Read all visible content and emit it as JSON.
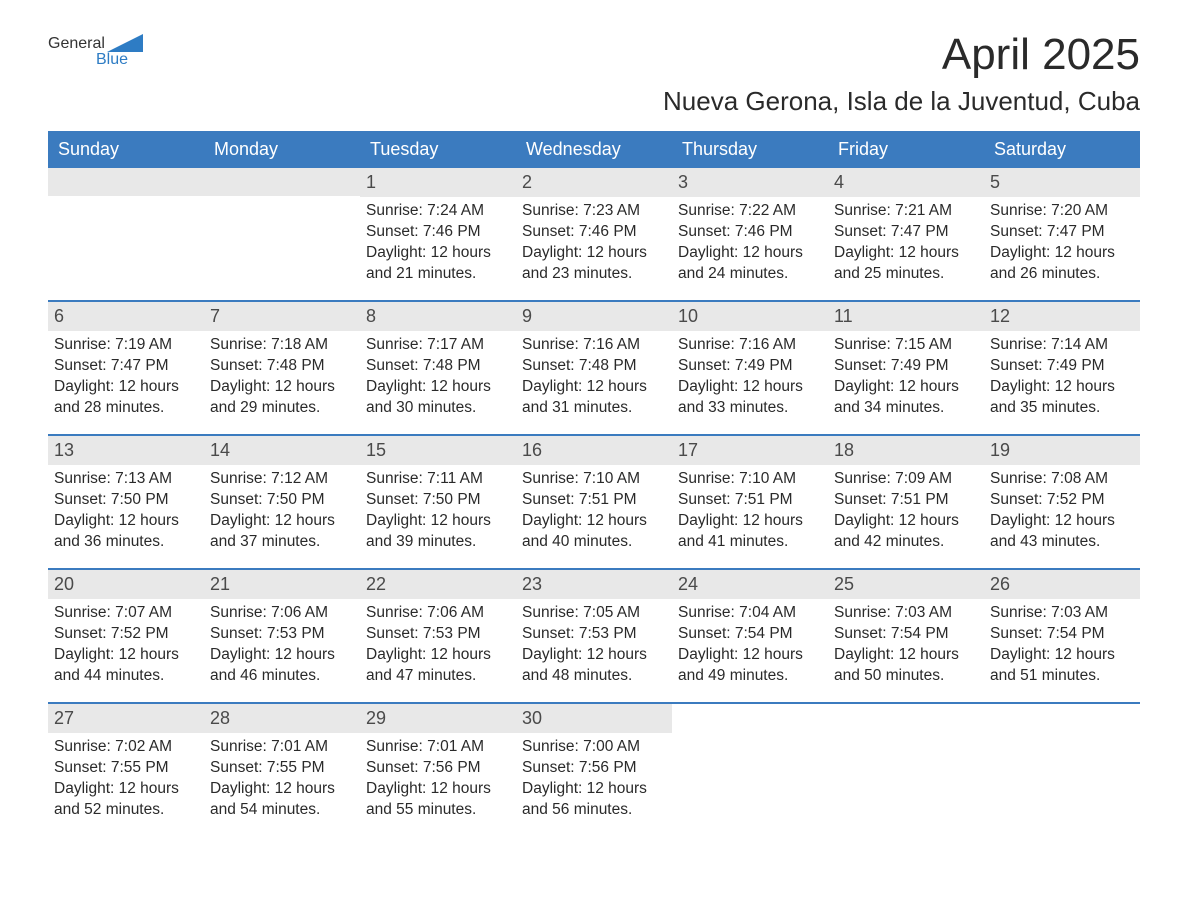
{
  "brand": {
    "word1": "General",
    "word2": "Blue",
    "text_color": "#333333",
    "accent_color": "#2e7cc4"
  },
  "title": "April 2025",
  "location": "Nueva Gerona, Isla de la Juventud, Cuba",
  "colors": {
    "header_bg": "#3b7bbf",
    "header_text": "#ffffff",
    "daynum_bg": "#e8e8e8",
    "daynum_text": "#4a4a4a",
    "body_text": "#2a2a2a",
    "row_divider": "#3b7bbf",
    "page_bg": "#ffffff"
  },
  "day_labels": [
    "Sunday",
    "Monday",
    "Tuesday",
    "Wednesday",
    "Thursday",
    "Friday",
    "Saturday"
  ],
  "weeks": [
    [
      {
        "day": "",
        "lines": []
      },
      {
        "day": "",
        "lines": []
      },
      {
        "day": "1",
        "lines": [
          "Sunrise: 7:24 AM",
          "Sunset: 7:46 PM",
          "Daylight: 12 hours",
          "and 21 minutes."
        ]
      },
      {
        "day": "2",
        "lines": [
          "Sunrise: 7:23 AM",
          "Sunset: 7:46 PM",
          "Daylight: 12 hours",
          "and 23 minutes."
        ]
      },
      {
        "day": "3",
        "lines": [
          "Sunrise: 7:22 AM",
          "Sunset: 7:46 PM",
          "Daylight: 12 hours",
          "and 24 minutes."
        ]
      },
      {
        "day": "4",
        "lines": [
          "Sunrise: 7:21 AM",
          "Sunset: 7:47 PM",
          "Daylight: 12 hours",
          "and 25 minutes."
        ]
      },
      {
        "day": "5",
        "lines": [
          "Sunrise: 7:20 AM",
          "Sunset: 7:47 PM",
          "Daylight: 12 hours",
          "and 26 minutes."
        ]
      }
    ],
    [
      {
        "day": "6",
        "lines": [
          "Sunrise: 7:19 AM",
          "Sunset: 7:47 PM",
          "Daylight: 12 hours",
          "and 28 minutes."
        ]
      },
      {
        "day": "7",
        "lines": [
          "Sunrise: 7:18 AM",
          "Sunset: 7:48 PM",
          "Daylight: 12 hours",
          "and 29 minutes."
        ]
      },
      {
        "day": "8",
        "lines": [
          "Sunrise: 7:17 AM",
          "Sunset: 7:48 PM",
          "Daylight: 12 hours",
          "and 30 minutes."
        ]
      },
      {
        "day": "9",
        "lines": [
          "Sunrise: 7:16 AM",
          "Sunset: 7:48 PM",
          "Daylight: 12 hours",
          "and 31 minutes."
        ]
      },
      {
        "day": "10",
        "lines": [
          "Sunrise: 7:16 AM",
          "Sunset: 7:49 PM",
          "Daylight: 12 hours",
          "and 33 minutes."
        ]
      },
      {
        "day": "11",
        "lines": [
          "Sunrise: 7:15 AM",
          "Sunset: 7:49 PM",
          "Daylight: 12 hours",
          "and 34 minutes."
        ]
      },
      {
        "day": "12",
        "lines": [
          "Sunrise: 7:14 AM",
          "Sunset: 7:49 PM",
          "Daylight: 12 hours",
          "and 35 minutes."
        ]
      }
    ],
    [
      {
        "day": "13",
        "lines": [
          "Sunrise: 7:13 AM",
          "Sunset: 7:50 PM",
          "Daylight: 12 hours",
          "and 36 minutes."
        ]
      },
      {
        "day": "14",
        "lines": [
          "Sunrise: 7:12 AM",
          "Sunset: 7:50 PM",
          "Daylight: 12 hours",
          "and 37 minutes."
        ]
      },
      {
        "day": "15",
        "lines": [
          "Sunrise: 7:11 AM",
          "Sunset: 7:50 PM",
          "Daylight: 12 hours",
          "and 39 minutes."
        ]
      },
      {
        "day": "16",
        "lines": [
          "Sunrise: 7:10 AM",
          "Sunset: 7:51 PM",
          "Daylight: 12 hours",
          "and 40 minutes."
        ]
      },
      {
        "day": "17",
        "lines": [
          "Sunrise: 7:10 AM",
          "Sunset: 7:51 PM",
          "Daylight: 12 hours",
          "and 41 minutes."
        ]
      },
      {
        "day": "18",
        "lines": [
          "Sunrise: 7:09 AM",
          "Sunset: 7:51 PM",
          "Daylight: 12 hours",
          "and 42 minutes."
        ]
      },
      {
        "day": "19",
        "lines": [
          "Sunrise: 7:08 AM",
          "Sunset: 7:52 PM",
          "Daylight: 12 hours",
          "and 43 minutes."
        ]
      }
    ],
    [
      {
        "day": "20",
        "lines": [
          "Sunrise: 7:07 AM",
          "Sunset: 7:52 PM",
          "Daylight: 12 hours",
          "and 44 minutes."
        ]
      },
      {
        "day": "21",
        "lines": [
          "Sunrise: 7:06 AM",
          "Sunset: 7:53 PM",
          "Daylight: 12 hours",
          "and 46 minutes."
        ]
      },
      {
        "day": "22",
        "lines": [
          "Sunrise: 7:06 AM",
          "Sunset: 7:53 PM",
          "Daylight: 12 hours",
          "and 47 minutes."
        ]
      },
      {
        "day": "23",
        "lines": [
          "Sunrise: 7:05 AM",
          "Sunset: 7:53 PM",
          "Daylight: 12 hours",
          "and 48 minutes."
        ]
      },
      {
        "day": "24",
        "lines": [
          "Sunrise: 7:04 AM",
          "Sunset: 7:54 PM",
          "Daylight: 12 hours",
          "and 49 minutes."
        ]
      },
      {
        "day": "25",
        "lines": [
          "Sunrise: 7:03 AM",
          "Sunset: 7:54 PM",
          "Daylight: 12 hours",
          "and 50 minutes."
        ]
      },
      {
        "day": "26",
        "lines": [
          "Sunrise: 7:03 AM",
          "Sunset: 7:54 PM",
          "Daylight: 12 hours",
          "and 51 minutes."
        ]
      }
    ],
    [
      {
        "day": "27",
        "lines": [
          "Sunrise: 7:02 AM",
          "Sunset: 7:55 PM",
          "Daylight: 12 hours",
          "and 52 minutes."
        ]
      },
      {
        "day": "28",
        "lines": [
          "Sunrise: 7:01 AM",
          "Sunset: 7:55 PM",
          "Daylight: 12 hours",
          "and 54 minutes."
        ]
      },
      {
        "day": "29",
        "lines": [
          "Sunrise: 7:01 AM",
          "Sunset: 7:56 PM",
          "Daylight: 12 hours",
          "and 55 minutes."
        ]
      },
      {
        "day": "30",
        "lines": [
          "Sunrise: 7:00 AM",
          "Sunset: 7:56 PM",
          "Daylight: 12 hours",
          "and 56 minutes."
        ]
      },
      {
        "day": "",
        "lines": []
      },
      {
        "day": "",
        "lines": []
      },
      {
        "day": "",
        "lines": []
      }
    ]
  ]
}
